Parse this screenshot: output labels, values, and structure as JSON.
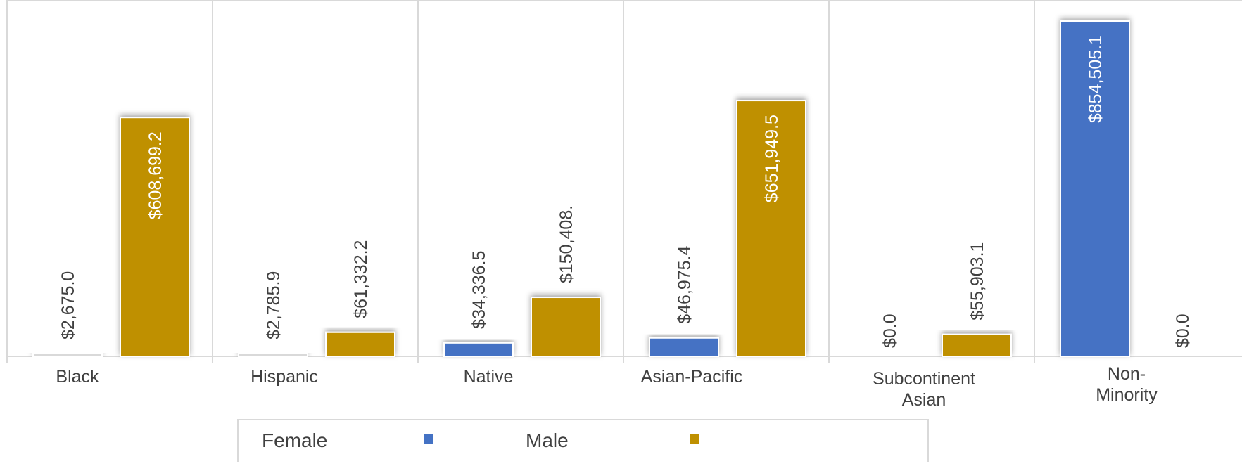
{
  "chart_data": {
    "type": "bar",
    "categories": [
      {
        "lines": [
          "Black"
        ]
      },
      {
        "lines": [
          "Hispanic"
        ]
      },
      {
        "lines": [
          "Native"
        ]
      },
      {
        "lines": [
          "Asian-Pacific"
        ]
      },
      {
        "lines": [
          "Subcontinent",
          "Asian"
        ]
      },
      {
        "lines": [
          "Non-",
          "Minority"
        ]
      }
    ],
    "series": [
      {
        "name": "Female",
        "color": "#4472C4",
        "values": [
          2675.0,
          2785.9,
          34336.5,
          46975.4,
          0.0,
          854505.1
        ],
        "labels": [
          "$2,675.0",
          "$2,785.9",
          "$34,336.5",
          "$46,975.4",
          "$0.0",
          "$854,505.1"
        ]
      },
      {
        "name": "Male",
        "color": "#BF9000",
        "values": [
          608699.2,
          61332.2,
          150408.0,
          651949.5,
          55903.1,
          0.0
        ],
        "labels": [
          "$608,699.2",
          "$61,332.2",
          "$150,408.",
          "$651,949.5",
          "$55,903.1",
          "$0.0"
        ]
      }
    ],
    "ylim": [
      0,
      900000
    ],
    "grid": "vertical-category-dividers",
    "legend_position": "bottom",
    "data_labels": "rotated-vertical"
  }
}
